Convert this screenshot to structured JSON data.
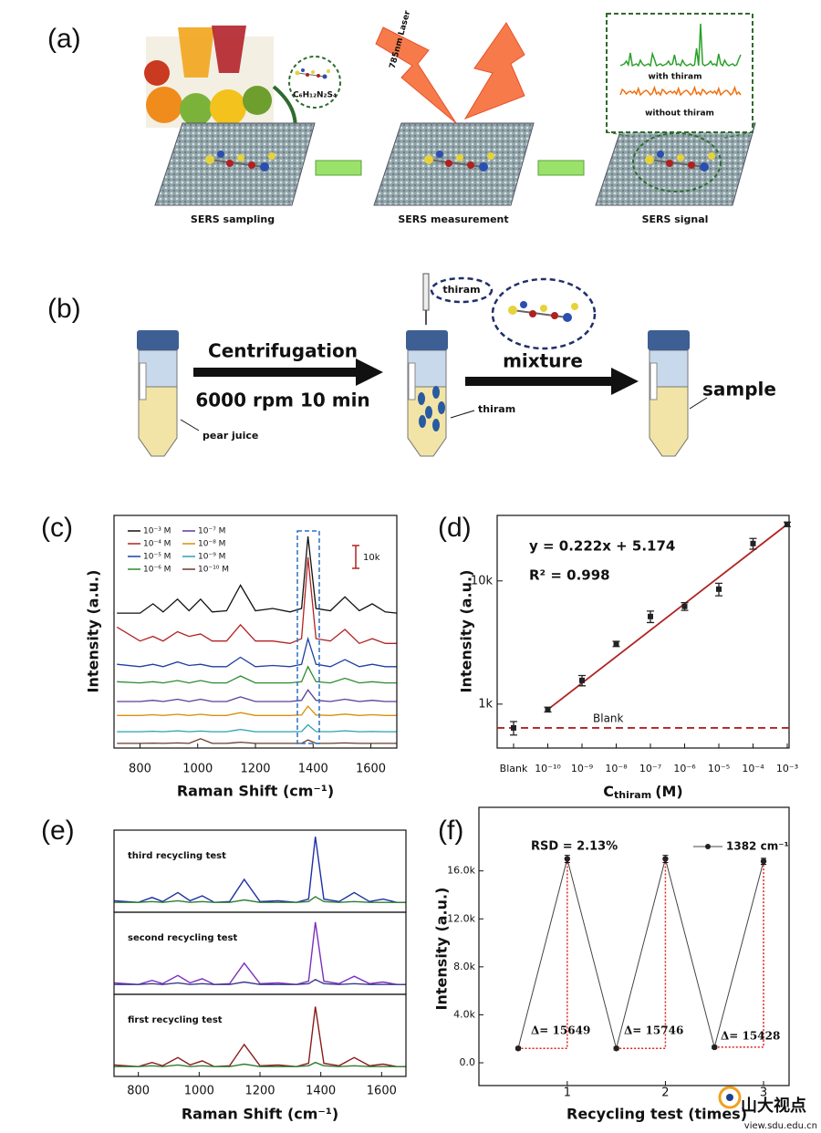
{
  "panel_a": {
    "label": "(a)",
    "steps": [
      "SERS sampling",
      "SERS measurement",
      "SERS signal"
    ],
    "formula": "C₆H₁₂N₂S₄",
    "laser": "785nm Laser",
    "with": "with thiram",
    "without": "without thiram"
  },
  "panel_b": {
    "label": "(b)",
    "step1": "Centrifugation",
    "step1_condition": "6000 rpm  10 min",
    "bubble": "thiram",
    "step2": "mixture",
    "tube_labels": [
      "pear juice",
      "thiram",
      "sample"
    ]
  },
  "chart_data": [
    {
      "panel": "(c)",
      "type": "line",
      "xlabel": "Raman Shift (cm⁻¹)",
      "ylabel": "Intensity (a.u.)",
      "scale_bar": "10k",
      "x": [
        720,
        800,
        845,
        880,
        930,
        970,
        1010,
        1050,
        1100,
        1148,
        1200,
        1260,
        1320,
        1360,
        1382,
        1410,
        1460,
        1510,
        1560,
        1605,
        1650,
        1690
      ],
      "xlim": [
        710,
        1690
      ],
      "xticks": [
        800,
        1000,
        1200,
        1400,
        1600
      ],
      "ylim": [
        0,
        100
      ],
      "series": [
        {
          "name": "10⁻³ M",
          "color": "#111111",
          "values": [
            58,
            58,
            62,
            58.5,
            64,
            59,
            64,
            58.5,
            59,
            70,
            59,
            60,
            58.5,
            60,
            91,
            60,
            59,
            65,
            59,
            62,
            58.5,
            58
          ]
        },
        {
          "name": "10⁻⁴ M",
          "color": "#b22222",
          "values": [
            52,
            46,
            48,
            46,
            50,
            48,
            49,
            46,
            46,
            53,
            46,
            46,
            45,
            47,
            82,
            47,
            46,
            51,
            45,
            47,
            45,
            45
          ]
        },
        {
          "name": "10⁻⁵ M",
          "color": "#1f3fa0",
          "values": [
            36,
            35,
            36,
            35,
            37,
            35.5,
            36,
            35,
            35,
            39,
            35,
            35.5,
            35,
            36,
            47,
            36,
            35,
            38,
            35,
            36,
            35,
            35
          ]
        },
        {
          "name": "10⁻⁶ M",
          "color": "#2e8b2e",
          "values": [
            28.5,
            28,
            28.5,
            28,
            29,
            28,
            29,
            28,
            28,
            31,
            28,
            28,
            28,
            28.5,
            35,
            28.5,
            28,
            30,
            28,
            28.5,
            28,
            28
          ]
        },
        {
          "name": "10⁻⁷ M",
          "color": "#5b3c9a",
          "values": [
            20,
            20,
            20.5,
            20,
            21,
            20,
            21,
            20,
            20,
            22,
            20,
            20,
            20,
            20.5,
            25,
            20.5,
            20,
            21,
            20,
            20.5,
            20,
            20
          ]
        },
        {
          "name": "10⁻⁸ M",
          "color": "#d4900a",
          "values": [
            14,
            14,
            14.3,
            14,
            14.5,
            14,
            14.5,
            14,
            14,
            15.2,
            14,
            14,
            14,
            14.2,
            18,
            14.2,
            14,
            14.6,
            14,
            14.3,
            14,
            14
          ]
        },
        {
          "name": "10⁻⁹ M",
          "color": "#2aa0b0",
          "values": [
            7,
            7,
            7.2,
            7,
            7.4,
            7,
            7.3,
            7,
            7,
            8,
            7,
            7,
            7,
            7.1,
            10,
            7.1,
            7,
            7.4,
            7,
            7.1,
            7,
            7
          ]
        },
        {
          "name": "10⁻¹⁰ M",
          "color": "#6b3a2a",
          "values": [
            2,
            2,
            2.1,
            2,
            2.2,
            2,
            4,
            2,
            2,
            2.5,
            2,
            2,
            2,
            2,
            3.5,
            2,
            2,
            2.2,
            2,
            2,
            2,
            2
          ]
        }
      ]
    },
    {
      "panel": "(d)",
      "type": "scatter",
      "ylabel": "Intensity (a.u.)",
      "xlabel": "C",
      "xlabel_sub": "thiram",
      "xlabel_unit": "(M)",
      "categories": [
        "Blank",
        "10⁻¹⁰",
        "10⁻⁹",
        "10⁻⁸",
        "10⁻⁷",
        "10⁻⁶",
        "10⁻⁵",
        "10⁻⁴",
        "10⁻³"
      ],
      "values": [
        641,
        903,
        1557,
        3083,
        5140,
        6210,
        8570,
        20100,
        28800
      ],
      "errors": [
        80,
        40,
        150,
        150,
        550,
        450,
        1000,
        2000,
        1200
      ],
      "log_y": true,
      "ylim": [
        440,
        34000
      ],
      "yticks": [
        {
          "value": 1000,
          "label": "1k"
        },
        {
          "value": 10000,
          "label": "10k"
        }
      ],
      "annotations": [
        "y = 0.222x + 5.174",
        "R² = 0.998"
      ],
      "baseline_label": "Blank",
      "color": "#222222",
      "fit_color": "#b22222"
    },
    {
      "panel": "(e)",
      "type": "line",
      "xlabel": "Raman Shift (cm⁻¹)",
      "x": [
        720,
        800,
        845,
        880,
        930,
        970,
        1010,
        1050,
        1100,
        1148,
        1200,
        1260,
        1320,
        1360,
        1382,
        1410,
        1460,
        1510,
        1560,
        1605,
        1650,
        1680
      ],
      "xlim": [
        720,
        1680
      ],
      "xticks": [
        800,
        1000,
        1200,
        1400,
        1600
      ],
      "ylim": [
        0,
        100
      ],
      "subplots": [
        {
          "label": "third recycling test",
          "series": [
            {
              "color": "#1c2fa6",
              "values": [
                14,
                12,
                18,
                13,
                24,
                14,
                20,
                12,
                13,
                40,
                13,
                14,
                12,
                16,
                92,
                16,
                13,
                24,
                13,
                16,
                12,
                12
              ]
            },
            {
              "color": "#2e7d32",
              "values": [
                12,
                12,
                13,
                12,
                14,
                12,
                13,
                12,
                12,
                15,
                12,
                12,
                12,
                13,
                19,
                13,
                12,
                13,
                12,
                12,
                12,
                12
              ]
            }
          ]
        },
        {
          "label": "second recycling test",
          "series": [
            {
              "color": "#7b2fbf",
              "values": [
                14,
                12,
                17,
                13,
                23,
                14,
                19,
                12,
                13,
                38,
                13,
                14,
                12,
                16,
                88,
                16,
                13,
                22,
                13,
                15,
                12,
                12
              ]
            },
            {
              "color": "#3a3a8a",
              "values": [
                12,
                12,
                13,
                12,
                14,
                12,
                13,
                12,
                12,
                15,
                12,
                12,
                12,
                13,
                18,
                13,
                12,
                13,
                12,
                12,
                12,
                12
              ]
            }
          ]
        },
        {
          "label": "first recycling test",
          "series": [
            {
              "color": "#8b1a1a",
              "values": [
                14,
                12,
                17,
                13,
                23,
                14,
                19,
                12,
                13,
                39,
                13,
                14,
                12,
                16,
                85,
                16,
                13,
                23,
                13,
                15,
                12,
                12
              ]
            },
            {
              "color": "#2e7d32",
              "values": [
                12,
                12,
                13,
                12,
                14,
                12,
                13,
                12,
                12,
                15,
                12,
                12,
                12,
                13,
                17,
                13,
                12,
                13,
                12,
                12,
                12,
                12
              ]
            }
          ]
        }
      ]
    },
    {
      "panel": "(f)",
      "type": "line",
      "xlabel": "Recycling test (times)",
      "ylabel": "Intensity (a.u.)",
      "x": [
        0.5,
        1,
        1.5,
        2,
        2.5,
        3
      ],
      "xlim": [
        0.1,
        3.26
      ],
      "xticks": [
        1,
        2,
        3
      ],
      "ylim": [
        -1900,
        21300
      ],
      "yticks": [
        {
          "value": 0,
          "label": "0.0"
        },
        {
          "value": 4000,
          "label": "4.0k"
        },
        {
          "value": 8000,
          "label": "8.0k"
        },
        {
          "value": 12000,
          "label": "12.0k"
        },
        {
          "value": 16000,
          "label": "16.0k"
        }
      ],
      "series": [
        {
          "name": "1382 cm⁻¹",
          "color": "#444444",
          "values": [
            1200,
            17000,
            1200,
            17000,
            1300,
            16800
          ],
          "errors": [
            120,
            300,
            120,
            300,
            120,
            250
          ]
        }
      ],
      "annotations": [
        "RSD = 2.13%"
      ],
      "deltas": [
        "Δ= 15649",
        "Δ= 15746",
        "Δ= 15428"
      ],
      "delta_color": "#e02020"
    }
  ],
  "watermark": {
    "name": "山大视点",
    "url": "view.sdu.edu.cn"
  }
}
